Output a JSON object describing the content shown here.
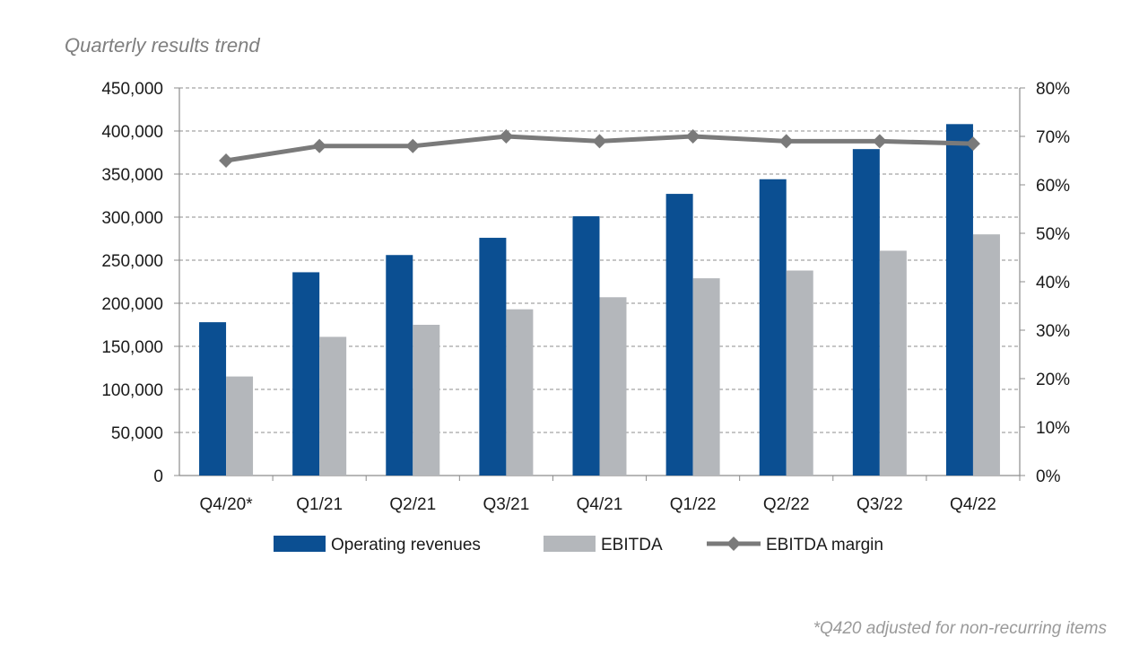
{
  "chart_data": {
    "type": "bar",
    "title": "Quarterly results trend",
    "footnote": "*Q420 adjusted for non-recurring items",
    "categories": [
      "Q4/20*",
      "Q1/21",
      "Q2/21",
      "Q3/21",
      "Q4/21",
      "Q1/22",
      "Q2/22",
      "Q3/22",
      "Q4/22"
    ],
    "series": [
      {
        "name": "Operating revenues",
        "type": "bar",
        "axis": "left",
        "color": "#0b4f92",
        "values": [
          178000,
          236000,
          256000,
          276000,
          301000,
          327000,
          344000,
          379000,
          408000
        ]
      },
      {
        "name": "EBITDA",
        "type": "bar",
        "axis": "left",
        "color": "#b4b7bb",
        "values": [
          115000,
          161000,
          175000,
          193000,
          207000,
          229000,
          238000,
          261000,
          280000
        ]
      },
      {
        "name": "EBITDA margin",
        "type": "line",
        "axis": "right",
        "color": "#7a7a7a",
        "values": [
          0.65,
          0.68,
          0.68,
          0.7,
          0.69,
          0.7,
          0.69,
          0.69,
          0.685
        ]
      }
    ],
    "left_axis": {
      "ylim": [
        0,
        450000
      ],
      "ticks": [
        0,
        50000,
        100000,
        150000,
        200000,
        250000,
        300000,
        350000,
        400000,
        450000
      ],
      "tick_labels": [
        "0",
        "50,000",
        "100,000",
        "150,000",
        "200,000",
        "250,000",
        "300,000",
        "350,000",
        "400,000",
        "450,000"
      ]
    },
    "right_axis": {
      "ylim": [
        0,
        0.8
      ],
      "ticks": [
        0,
        0.1,
        0.2,
        0.3,
        0.4,
        0.5,
        0.6,
        0.7,
        0.8
      ],
      "tick_labels": [
        "0%",
        "10%",
        "20%",
        "30%",
        "40%",
        "50%",
        "60%",
        "70%",
        "80%"
      ]
    },
    "grid": true,
    "legend": "bottom"
  }
}
